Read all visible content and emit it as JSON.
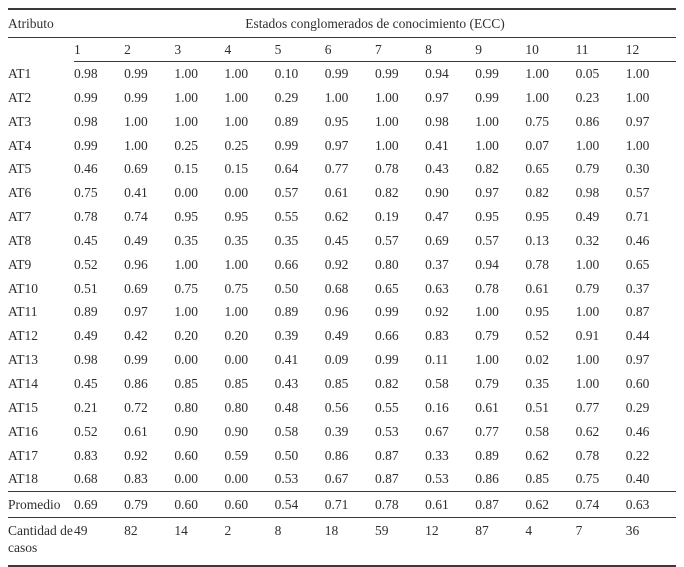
{
  "table": {
    "col1_header": "Atributo",
    "group_header": "Estados conglomerados de conocimiento (ECC)",
    "ecc_columns": [
      "1",
      "2",
      "3",
      "4",
      "5",
      "6",
      "7",
      "8",
      "9",
      "10",
      "11",
      "12"
    ],
    "rows": [
      {
        "label": "AT1",
        "values": [
          "0.98",
          "0.99",
          "1.00",
          "1.00",
          "0.10",
          "0.99",
          "0.99",
          "0.94",
          "0.99",
          "1.00",
          "0.05",
          "1.00"
        ]
      },
      {
        "label": "AT2",
        "values": [
          "0.99",
          "0.99",
          "1.00",
          "1.00",
          "0.29",
          "1.00",
          "1.00",
          "0.97",
          "0.99",
          "1.00",
          "0.23",
          "1.00"
        ]
      },
      {
        "label": "AT3",
        "values": [
          "0.98",
          "1.00",
          "1.00",
          "1.00",
          "0.89",
          "0.95",
          "1.00",
          "0.98",
          "1.00",
          "0.75",
          "0.86",
          "0.97"
        ]
      },
      {
        "label": "AT4",
        "values": [
          "0.99",
          "1.00",
          "0.25",
          "0.25",
          "0.99",
          "0.97",
          "1.00",
          "0.41",
          "1.00",
          "0.07",
          "1.00",
          "1.00"
        ]
      },
      {
        "label": "AT5",
        "values": [
          "0.46",
          "0.69",
          "0.15",
          "0.15",
          "0.64",
          "0.77",
          "0.78",
          "0.43",
          "0.82",
          "0.65",
          "0.79",
          "0.30"
        ]
      },
      {
        "label": "AT6",
        "values": [
          "0.75",
          "0.41",
          "0.00",
          "0.00",
          "0.57",
          "0.61",
          "0.82",
          "0.90",
          "0.97",
          "0.82",
          "0.98",
          "0.57"
        ]
      },
      {
        "label": "AT7",
        "values": [
          "0.78",
          "0.74",
          "0.95",
          "0.95",
          "0.55",
          "0.62",
          "0.19",
          "0.47",
          "0.95",
          "0.95",
          "0.49",
          "0.71"
        ]
      },
      {
        "label": "AT8",
        "values": [
          "0.45",
          "0.49",
          "0.35",
          "0.35",
          "0.35",
          "0.45",
          "0.57",
          "0.69",
          "0.57",
          "0.13",
          "0.32",
          "0.46"
        ]
      },
      {
        "label": "AT9",
        "values": [
          "0.52",
          "0.96",
          "1.00",
          "1.00",
          "0.66",
          "0.92",
          "0.80",
          "0.37",
          "0.94",
          "0.78",
          "1.00",
          "0.65"
        ]
      },
      {
        "label": "AT10",
        "values": [
          "0.51",
          "0.69",
          "0.75",
          "0.75",
          "0.50",
          "0.68",
          "0.65",
          "0.63",
          "0.78",
          "0.61",
          "0.79",
          "0.37"
        ]
      },
      {
        "label": "AT11",
        "values": [
          "0.89",
          "0.97",
          "1.00",
          "1.00",
          "0.89",
          "0.96",
          "0.99",
          "0.92",
          "1.00",
          "0.95",
          "1.00",
          "0.87"
        ]
      },
      {
        "label": "AT12",
        "values": [
          "0.49",
          "0.42",
          "0.20",
          "0.20",
          "0.39",
          "0.49",
          "0.66",
          "0.83",
          "0.79",
          "0.52",
          "0.91",
          "0.44"
        ]
      },
      {
        "label": "AT13",
        "values": [
          "0.98",
          "0.99",
          "0.00",
          "0.00",
          "0.41",
          "0.09",
          "0.99",
          "0.11",
          "1.00",
          "0.02",
          "1.00",
          "0.97"
        ]
      },
      {
        "label": "AT14",
        "values": [
          "0.45",
          "0.86",
          "0.85",
          "0.85",
          "0.43",
          "0.85",
          "0.82",
          "0.58",
          "0.79",
          "0.35",
          "1.00",
          "0.60"
        ]
      },
      {
        "label": "AT15",
        "values": [
          "0.21",
          "0.72",
          "0.80",
          "0.80",
          "0.48",
          "0.56",
          "0.55",
          "0.16",
          "0.61",
          "0.51",
          "0.77",
          "0.29"
        ]
      },
      {
        "label": "AT16",
        "values": [
          "0.52",
          "0.61",
          "0.90",
          "0.90",
          "0.58",
          "0.39",
          "0.53",
          "0.67",
          "0.77",
          "0.58",
          "0.62",
          "0.46"
        ]
      },
      {
        "label": "AT17",
        "values": [
          "0.83",
          "0.92",
          "0.60",
          "0.59",
          "0.50",
          "0.86",
          "0.87",
          "0.33",
          "0.89",
          "0.62",
          "0.78",
          "0.22"
        ]
      },
      {
        "label": "AT18",
        "values": [
          "0.68",
          "0.83",
          "0.00",
          "0.00",
          "0.53",
          "0.67",
          "0.87",
          "0.53",
          "0.86",
          "0.85",
          "0.75",
          "0.40"
        ]
      }
    ],
    "summary_rows": [
      {
        "key": "promedio",
        "label": "Promedio",
        "values": [
          "0.69",
          "0.79",
          "0.60",
          "0.60",
          "0.54",
          "0.71",
          "0.78",
          "0.61",
          "0.87",
          "0.62",
          "0.74",
          "0.63"
        ]
      },
      {
        "key": "cantidad",
        "label": "Cantidad de casos",
        "values": [
          "49",
          "82",
          "14",
          "2",
          "8",
          "18",
          "59",
          "12",
          "87",
          "4",
          "7",
          "36"
        ]
      }
    ]
  }
}
